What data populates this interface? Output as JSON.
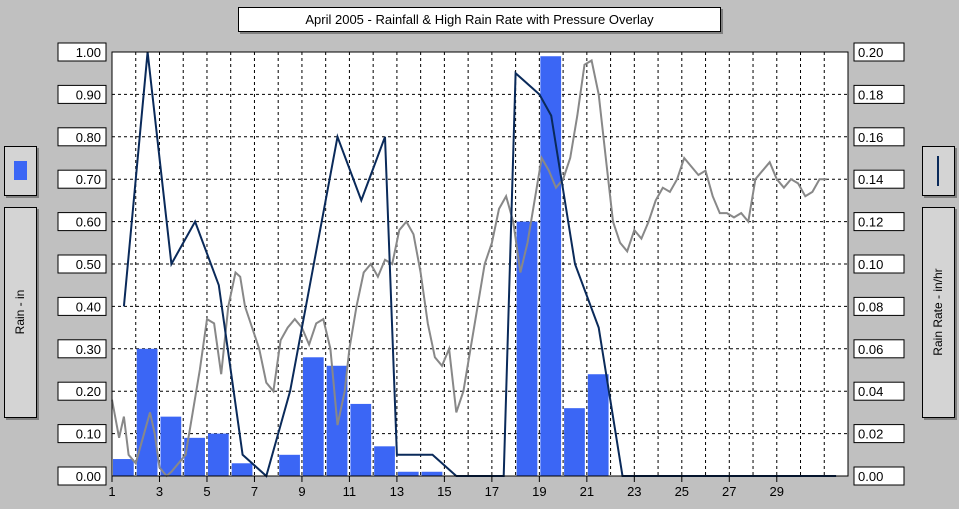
{
  "chart_data": {
    "type": "bar",
    "title": "April 2005 - Rainfall & High Rain Rate with Pressure Overlay",
    "ylabel_left": "Rain - in",
    "ylabel_right": "Rain Rate - in/hr",
    "ylim_left": [
      0,
      1.0
    ],
    "ylim_right": [
      0,
      0.2
    ],
    "xlim": [
      1,
      32
    ],
    "x_tick_labels": [
      "1",
      "3",
      "5",
      "7",
      "9",
      "11",
      "13",
      "15",
      "17",
      "19",
      "21",
      "23",
      "25",
      "27",
      "29"
    ],
    "y_left_ticks": [
      "0.00",
      "0.10",
      "0.20",
      "0.30",
      "0.40",
      "0.50",
      "0.60",
      "0.70",
      "0.80",
      "0.90",
      "1.00"
    ],
    "y_right_ticks": [
      "0.00",
      "0.02",
      "0.04",
      "0.06",
      "0.08",
      "0.10",
      "0.12",
      "0.14",
      "0.16",
      "0.18",
      "0.20"
    ],
    "grid": true,
    "colors": {
      "rain": "#3b66f5",
      "rate": "#0a2a5a",
      "pressure": "#888888"
    },
    "series": [
      {
        "axis": "left",
        "kind": "bar",
        "days": [
          1,
          2,
          3,
          4,
          5,
          6,
          7,
          8,
          9,
          10,
          11,
          12,
          13,
          14,
          15,
          16,
          17,
          18,
          19,
          20,
          21,
          22,
          23,
          24,
          25,
          26,
          27,
          28,
          29,
          30
        ],
        "values": [
          0.04,
          0.3,
          0.14,
          0.09,
          0.1,
          0.03,
          0,
          0.05,
          0.28,
          0.26,
          0.17,
          0.07,
          0.01,
          0.01,
          0,
          0,
          0,
          0.6,
          0.99,
          0.16,
          0.24,
          0,
          0,
          0,
          0,
          0,
          0,
          0,
          0,
          0
        ]
      },
      {
        "axis": "right",
        "kind": "line",
        "x": [
          1.5,
          2.5,
          3.5,
          4.5,
          5.5,
          6.5,
          7.5,
          8.5,
          9.5,
          10.5,
          11.5,
          12.5,
          13.0,
          14.5,
          15.5,
          16.5,
          17.5,
          18.0,
          19.0,
          19.5,
          20.5,
          21.5,
          22.5,
          23.5,
          24.5,
          25.5,
          26.5,
          27.5,
          28.5,
          29.5,
          30.5,
          31.5
        ],
        "y": [
          0.08,
          0.2,
          0.1,
          0.12,
          0.09,
          0.01,
          0,
          0.04,
          0.1,
          0.16,
          0.13,
          0.16,
          0.01,
          0.01,
          0,
          0,
          0,
          0.19,
          0.18,
          0.17,
          0.1,
          0.07,
          0,
          0,
          0,
          0,
          0,
          0,
          0,
          0,
          0,
          0
        ]
      },
      {
        "axis": "pressure",
        "kind": "line",
        "x": [
          1.0,
          1.3,
          1.5,
          1.7,
          2.0,
          2.3,
          2.6,
          2.8,
          3.0,
          3.3,
          3.5,
          3.8,
          4.1,
          4.4,
          4.7,
          5.0,
          5.3,
          5.6,
          5.9,
          6.2,
          6.4,
          6.6,
          6.9,
          7.2,
          7.5,
          7.8,
          8.1,
          8.4,
          8.7,
          9.0,
          9.3,
          9.6,
          9.9,
          10.2,
          10.5,
          10.8,
          11.0,
          11.3,
          11.6,
          11.9,
          12.2,
          12.5,
          12.8,
          13.1,
          13.4,
          13.7,
          14.0,
          14.3,
          14.6,
          14.9,
          15.2,
          15.5,
          15.8,
          16.1,
          16.4,
          16.7,
          17.0,
          17.3,
          17.6,
          17.9,
          18.2,
          18.5,
          18.8,
          19.1,
          19.4,
          19.7,
          20.0,
          20.3,
          20.6,
          20.9,
          21.2,
          21.5,
          21.8,
          22.1,
          22.4,
          22.7,
          23.0,
          23.3,
          23.6,
          23.9,
          24.2,
          24.5,
          24.8,
          25.1,
          25.4,
          25.7,
          26.0,
          26.3,
          26.6,
          26.9,
          27.2,
          27.5,
          27.8,
          28.1,
          28.4,
          28.7,
          29.0,
          29.3,
          29.6,
          29.9,
          30.2,
          30.5,
          30.8,
          31.1
        ],
        "y": [
          0.18,
          0.09,
          0.14,
          0.05,
          0.03,
          0.09,
          0.15,
          0.1,
          0.02,
          0.0,
          0.01,
          0.03,
          0.05,
          0.15,
          0.25,
          0.37,
          0.36,
          0.24,
          0.4,
          0.48,
          0.47,
          0.4,
          0.35,
          0.3,
          0.22,
          0.2,
          0.32,
          0.35,
          0.37,
          0.35,
          0.31,
          0.36,
          0.37,
          0.3,
          0.12,
          0.2,
          0.3,
          0.4,
          0.48,
          0.5,
          0.47,
          0.51,
          0.5,
          0.58,
          0.6,
          0.57,
          0.48,
          0.36,
          0.28,
          0.26,
          0.3,
          0.15,
          0.2,
          0.3,
          0.4,
          0.5,
          0.55,
          0.63,
          0.66,
          0.6,
          0.48,
          0.55,
          0.65,
          0.75,
          0.72,
          0.68,
          0.7,
          0.75,
          0.85,
          0.97,
          0.98,
          0.9,
          0.75,
          0.6,
          0.55,
          0.53,
          0.58,
          0.56,
          0.6,
          0.65,
          0.68,
          0.67,
          0.7,
          0.75,
          0.73,
          0.71,
          0.72,
          0.66,
          0.62,
          0.62,
          0.61,
          0.62,
          0.6,
          0.7,
          0.72,
          0.74,
          0.7,
          0.68,
          0.7,
          0.69,
          0.66,
          0.67,
          0.7,
          0.7
        ]
      }
    ]
  },
  "legend": {
    "left_label": "Rain - in",
    "right_label": "Rain Rate - in/hr",
    "rain_swatch_icon": "bar-swatch-icon",
    "rate_swatch_icon": "line-swatch-icon"
  }
}
